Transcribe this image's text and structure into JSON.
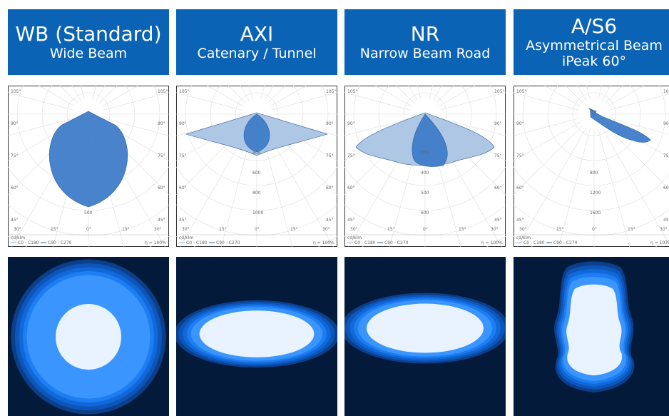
{
  "columns": [
    {
      "title": "WB (Standard)",
      "subtitle": [
        "Wide Beam"
      ],
      "polar": {
        "angle_labels": [
          "105°",
          "90°",
          "75°",
          "60°",
          "45°",
          "30°",
          "15°",
          "0°"
        ],
        "radial_labels": [
          "500"
        ],
        "unit": "cd/klm",
        "legend": [
          "C0 - C180",
          "C90 - C270"
        ],
        "efficiency": "η = 100%"
      }
    },
    {
      "title": "AXI",
      "subtitle": [
        "Catenary / Tunnel"
      ],
      "polar": {
        "angle_labels": [
          "105°",
          "90°",
          "75°",
          "60°",
          "45°",
          "30°",
          "15°",
          "0°"
        ],
        "radial_labels": [
          "400",
          "600",
          "800",
          "1000"
        ],
        "unit": "cd/klm",
        "legend": [
          "C0 - C180",
          "C90 - C270"
        ],
        "efficiency": "η = 100%"
      }
    },
    {
      "title": "NR",
      "subtitle": [
        "Narrow Beam Road"
      ],
      "polar": {
        "angle_labels": [
          "105°",
          "90°",
          "75°",
          "60°",
          "45°",
          "30°",
          "15°",
          "0°"
        ],
        "radial_labels": [
          "200",
          "400",
          "500",
          "600"
        ],
        "unit": "cd/klm",
        "legend": [
          "C0 - C180",
          "C90 - C270"
        ],
        "efficiency": "η = 100%"
      }
    },
    {
      "title": "A/S6",
      "subtitle": [
        "Asymmetrical Beam",
        "iPeak 60°"
      ],
      "polar": {
        "angle_labels": [
          "105°",
          "90°",
          "75°",
          "60°",
          "45°",
          "30°",
          "15°",
          "0°"
        ],
        "radial_labels": [
          "800",
          "1200",
          "1600"
        ],
        "unit": "cd/klm",
        "legend": [
          "C0 - C180",
          "C90 - C270"
        ],
        "efficiency": "η = 103%"
      }
    }
  ]
}
